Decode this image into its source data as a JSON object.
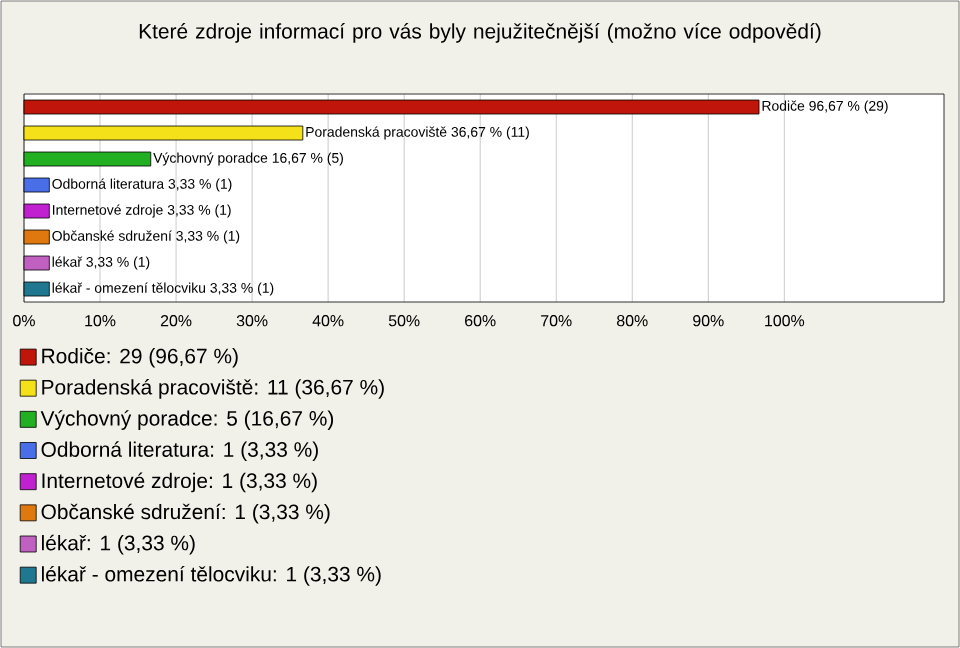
{
  "chart_data": {
    "type": "bar",
    "orientation": "horizontal",
    "title": "Které zdroje informací pro vás byly nejužitečnější (možno více odpovědí)",
    "categories": [
      null,
      null,
      null,
      null,
      null,
      null,
      null,
      null
    ],
    "series": [
      {
        "name": "Rodiče: 29 (96,67 %)",
        "color": "#c0150a",
        "values": [
          96.67,
          null,
          null,
          null,
          null,
          null,
          null,
          null
        ],
        "value_labels": [
          "Rodiče 96,67 % (29)",
          null,
          null,
          null,
          null,
          null,
          null,
          null
        ]
      },
      {
        "name": "Poradenská pracoviště: 11 (36,67 %)",
        "color": "#f5e11a",
        "values": [
          null,
          36.67,
          null,
          null,
          null,
          null,
          null,
          null
        ],
        "value_labels": [
          null,
          "Poradenská pracoviště 36,67 % (11)",
          null,
          null,
          null,
          null,
          null,
          null
        ]
      },
      {
        "name": "Výchovný poradce: 5 (16,67 %)",
        "color": "#22b022",
        "values": [
          null,
          null,
          16.67,
          null,
          null,
          null,
          null,
          null
        ],
        "value_labels": [
          null,
          null,
          "Výchovný poradce 16,67 % (5)",
          null,
          null,
          null,
          null,
          null
        ]
      },
      {
        "name": "Odborná literatura: 1 (3,33 %)",
        "color": "#4a6ee8",
        "values": [
          null,
          null,
          null,
          3.33,
          null,
          null,
          null,
          null
        ],
        "value_labels": [
          null,
          null,
          null,
          "Odborná literatura 3,33 % (1)",
          null,
          null,
          null,
          null
        ]
      },
      {
        "name": "Internetové zdroje: 1 (3,33 %)",
        "color": "#c020d0",
        "values": [
          null,
          null,
          null,
          null,
          3.33,
          null,
          null,
          null
        ],
        "value_labels": [
          null,
          null,
          null,
          null,
          "Internetové zdroje 3,33 % (1)",
          null,
          null,
          null
        ]
      },
      {
        "name": "Občanské sdružení: 1 (3,33 %)",
        "color": "#e07810",
        "values": [
          null,
          null,
          null,
          null,
          null,
          3.33,
          null,
          null
        ],
        "value_labels": [
          null,
          null,
          null,
          null,
          null,
          "Občanské sdružení 3,33 % (1)",
          null,
          null
        ]
      },
      {
        "name": "lékař: 1 (3,33 %)",
        "color": "#c060c0",
        "values": [
          null,
          null,
          null,
          null,
          null,
          null,
          3.33,
          null
        ],
        "value_labels": [
          null,
          null,
          null,
          null,
          null,
          null,
          "lékař 3,33 % (1)",
          null
        ]
      },
      {
        "name": "lékař - omezení tělocviku: 1 (3,33 %)",
        "color": "#207890",
        "values": [
          null,
          null,
          null,
          null,
          null,
          null,
          null,
          3.33
        ],
        "value_labels": [
          null,
          null,
          null,
          null,
          null,
          null,
          null,
          "lékař - omezení tělocviku 3,33 % (1)"
        ]
      }
    ],
    "xlim": [
      0,
      121
    ],
    "xticks": [
      {
        "value": 0,
        "label": "0%"
      },
      {
        "value": 10,
        "label": "10%"
      },
      {
        "value": 20,
        "label": "20%"
      },
      {
        "value": 30,
        "label": "30%"
      },
      {
        "value": 40,
        "label": "40%"
      },
      {
        "value": 50,
        "label": "50%"
      },
      {
        "value": 60,
        "label": "60%"
      },
      {
        "value": 70,
        "label": "70%"
      },
      {
        "value": 80,
        "label": "80%"
      },
      {
        "value": 90,
        "label": "90%"
      },
      {
        "value": 100,
        "label": "100%"
      }
    ],
    "grid": "x",
    "legend": "bottom"
  }
}
